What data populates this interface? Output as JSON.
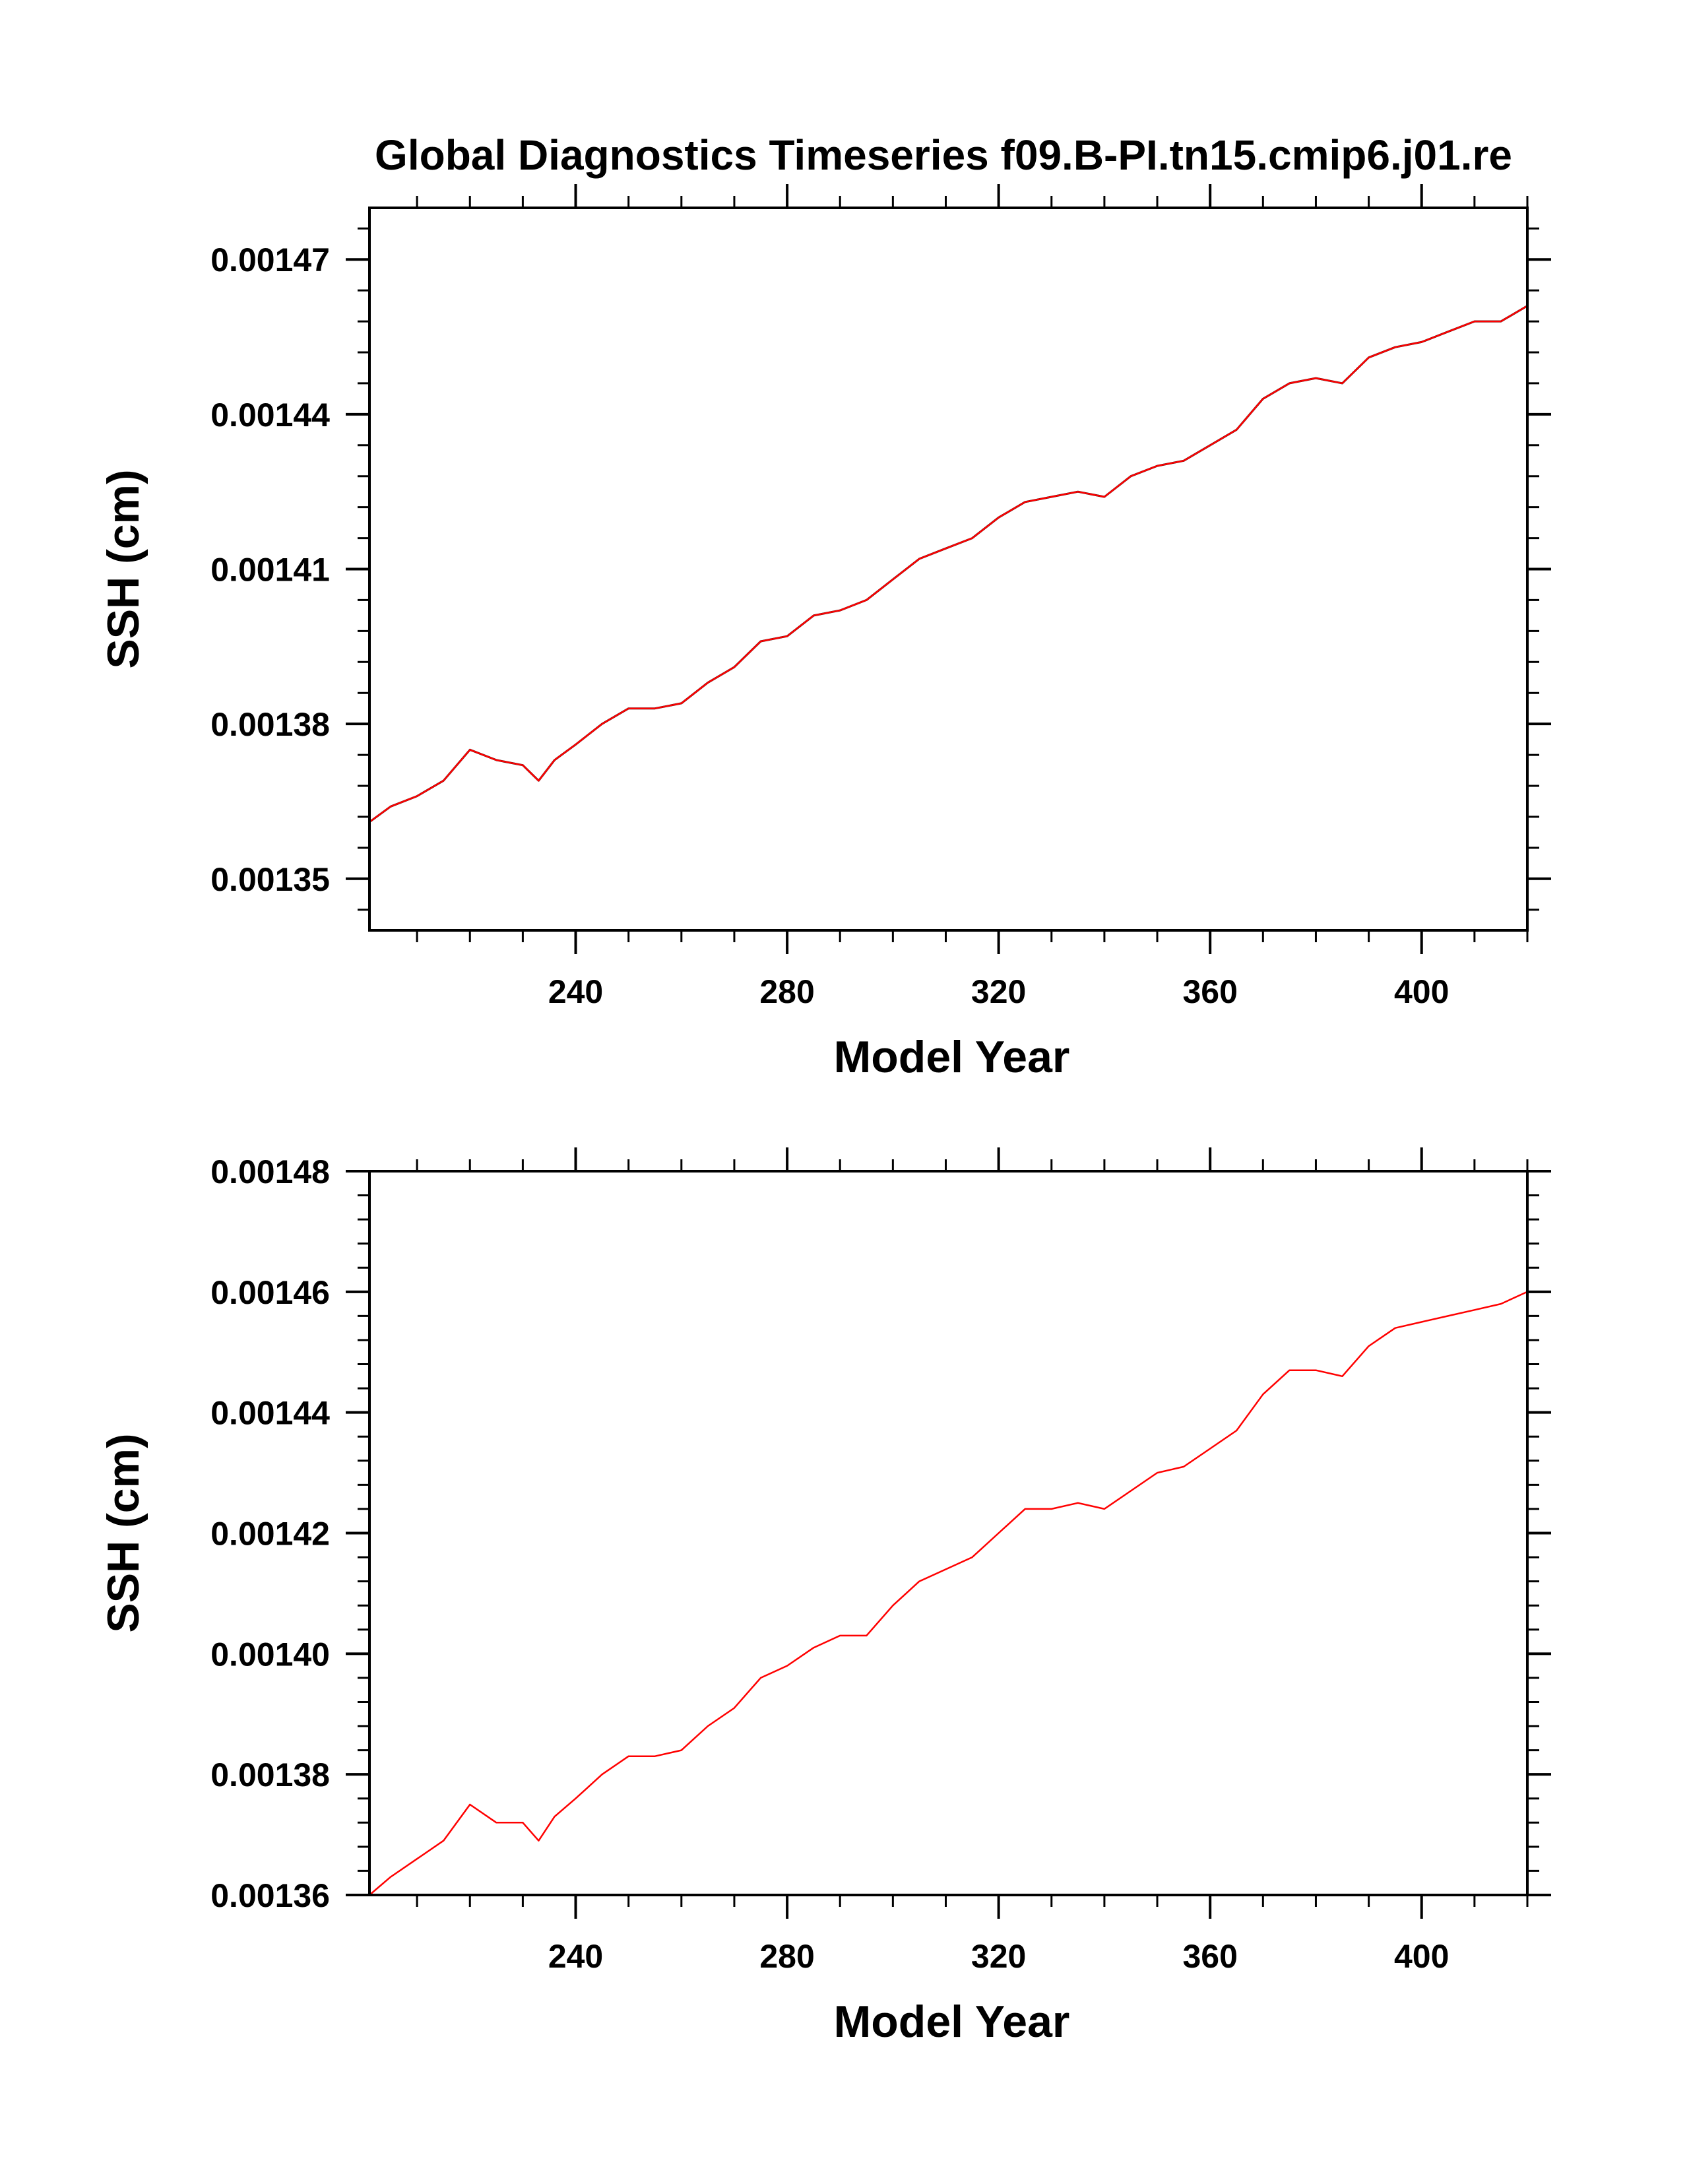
{
  "figure_title": "Global Diagnostics Timeseries f09.B-PI.tn15.cmip6.j01.re",
  "colors": {
    "axis": "#000000",
    "raw_series": "#000000",
    "smooth_series": "#ff0000",
    "background": "#ffffff"
  },
  "chart_data": [
    {
      "type": "line",
      "title": "",
      "xlabel": "Model Year",
      "ylabel": "SSH (cm)",
      "xlim": [
        201,
        420
      ],
      "ylim": [
        0.00134,
        0.00148
      ],
      "x_major_ticks": [
        240,
        280,
        320,
        360,
        400
      ],
      "x_tick_labels": [
        "240",
        "280",
        "320",
        "360",
        "400"
      ],
      "y_major_ticks": [
        0.00135,
        0.00138,
        0.00141,
        0.00144,
        0.00147
      ],
      "y_tick_labels": [
        "0.00135",
        "0.00138",
        "0.00141",
        "0.00144",
        "0.00147"
      ],
      "grid": false,
      "legend": "none",
      "series": [
        {
          "color": "#000000",
          "style": "monthly, noisy",
          "x": [
            201,
            205,
            210,
            215,
            220,
            225,
            230,
            233,
            236,
            240,
            245,
            250,
            255,
            260,
            265,
            270,
            275,
            280,
            285,
            290,
            295,
            300,
            305,
            310,
            315,
            320,
            325,
            330,
            335,
            340,
            345,
            350,
            355,
            360,
            365,
            370,
            375,
            380,
            385,
            390,
            395,
            400,
            405,
            410,
            415,
            420
          ],
          "y": [
            0.001361,
            0.001364,
            0.001366,
            0.001369,
            0.001375,
            0.001373,
            0.001372,
            0.001369,
            0.001373,
            0.001376,
            0.00138,
            0.001383,
            0.001383,
            0.001384,
            0.001388,
            0.001391,
            0.001396,
            0.001397,
            0.001401,
            0.001402,
            0.001404,
            0.001408,
            0.001412,
            0.001414,
            0.001416,
            0.00142,
            0.001423,
            0.001424,
            0.001425,
            0.001424,
            0.001428,
            0.00143,
            0.001431,
            0.001434,
            0.001437,
            0.001443,
            0.001446,
            0.001447,
            0.001446,
            0.001451,
            0.001453,
            0.001454,
            0.001456,
            0.001458,
            0.001458,
            0.001461
          ]
        },
        {
          "color": "#ff0000",
          "style": "annual mean",
          "x": [
            201,
            205,
            210,
            215,
            220,
            225,
            230,
            233,
            236,
            240,
            245,
            250,
            255,
            260,
            265,
            270,
            275,
            280,
            285,
            290,
            295,
            300,
            305,
            310,
            315,
            320,
            325,
            330,
            335,
            340,
            345,
            350,
            355,
            360,
            365,
            370,
            375,
            380,
            385,
            390,
            395,
            400,
            405,
            410,
            415,
            420
          ],
          "y": [
            0.001361,
            0.001364,
            0.001366,
            0.001369,
            0.001375,
            0.001373,
            0.001372,
            0.001369,
            0.001373,
            0.001376,
            0.00138,
            0.001383,
            0.001383,
            0.001384,
            0.001388,
            0.001391,
            0.001396,
            0.001397,
            0.001401,
            0.001402,
            0.001404,
            0.001408,
            0.001412,
            0.001414,
            0.001416,
            0.00142,
            0.001423,
            0.001424,
            0.001425,
            0.001424,
            0.001428,
            0.00143,
            0.001431,
            0.001434,
            0.001437,
            0.001443,
            0.001446,
            0.001447,
            0.001446,
            0.001451,
            0.001453,
            0.001454,
            0.001456,
            0.001458,
            0.001458,
            0.001461
          ]
        }
      ]
    },
    {
      "type": "line",
      "title": "",
      "xlabel": "Model Year",
      "ylabel": "SSH (cm)",
      "xlim": [
        201,
        420
      ],
      "ylim": [
        0.00136,
        0.00148
      ],
      "x_major_ticks": [
        240,
        280,
        320,
        360,
        400
      ],
      "x_tick_labels": [
        "240",
        "280",
        "320",
        "360",
        "400"
      ],
      "y_major_ticks": [
        0.00136,
        0.00138,
        0.0014,
        0.00142,
        0.00144,
        0.00146,
        0.00148
      ],
      "y_tick_labels": [
        "0.00136",
        "0.00138",
        "0.00140",
        "0.00142",
        "0.00144",
        "0.00146",
        "0.00148"
      ],
      "grid": false,
      "legend": "none",
      "series": [
        {
          "color": "#ff0000",
          "style": "annual mean",
          "x": [
            201,
            205,
            210,
            215,
            220,
            225,
            230,
            233,
            236,
            240,
            245,
            250,
            255,
            260,
            265,
            270,
            275,
            280,
            285,
            290,
            295,
            300,
            305,
            310,
            315,
            320,
            325,
            330,
            335,
            340,
            345,
            350,
            355,
            360,
            365,
            370,
            375,
            380,
            385,
            390,
            395,
            400,
            405,
            410,
            415,
            420
          ],
          "y": [
            0.00136,
            0.001363,
            0.001366,
            0.001369,
            0.001375,
            0.001372,
            0.001372,
            0.001369,
            0.001373,
            0.001376,
            0.00138,
            0.001383,
            0.001383,
            0.001384,
            0.001388,
            0.001391,
            0.001396,
            0.001398,
            0.001401,
            0.001403,
            0.001403,
            0.001408,
            0.001412,
            0.001414,
            0.001416,
            0.00142,
            0.001424,
            0.001424,
            0.001425,
            0.001424,
            0.001427,
            0.00143,
            0.001431,
            0.001434,
            0.001437,
            0.001443,
            0.001447,
            0.001447,
            0.001446,
            0.001451,
            0.001454,
            0.001455,
            0.001456,
            0.001457,
            0.001458,
            0.00146
          ]
        }
      ]
    }
  ]
}
